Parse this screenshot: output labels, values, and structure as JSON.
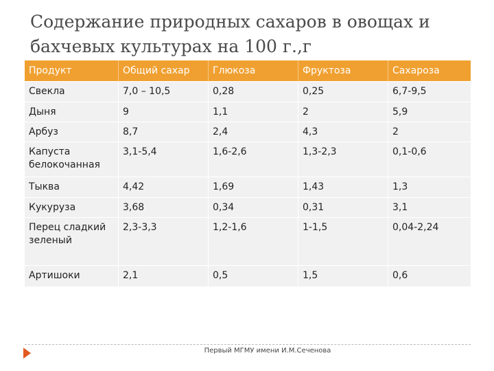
{
  "slide": {
    "title": "Содержание природных сахаров в овощах и бахчевых культурах на 100 г.,г",
    "footer": "Первый МГМУ имени И.М.Сеченова"
  },
  "table": {
    "headers": [
      "Продукт",
      "Общий сахар",
      "Глюкоза",
      "Фруктоза",
      "Сахароза"
    ],
    "rows": [
      [
        "Свекла",
        "7,0 – 10,5",
        "0,28",
        "0,25",
        "6,7-9,5"
      ],
      [
        "Дыня",
        "9",
        "1,1",
        "2",
        "5,9"
      ],
      [
        "Арбуз",
        "8,7",
        "2,4",
        "4,3",
        "2"
      ],
      [
        "Капуста белокочанная",
        "3,1-5,4",
        "1,6-2,6",
        "1,3-2,3",
        "0,1-0,6"
      ],
      [
        "Тыква",
        "4,42",
        "1,69",
        "1,43",
        "1,3"
      ],
      [
        "Кукуруза",
        "3,68",
        "0,34",
        "0,31",
        "3,1"
      ],
      [
        "Перец сладкий зеленый",
        "2,3-3,3",
        "1,2-1,6",
        "1-1,5",
        "0,04-2,24"
      ],
      [
        "Артишоки",
        "2,1",
        "0,5",
        "1,5",
        "0,6"
      ]
    ]
  },
  "colors": {
    "header_bg": "#f0a030",
    "cell_bg": "#f1f1f1",
    "footer_marker": "#e05a20"
  }
}
